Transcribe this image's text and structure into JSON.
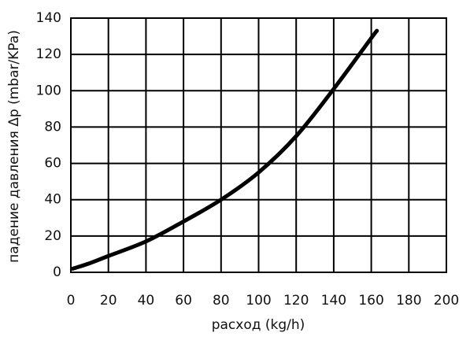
{
  "chart_data": {
    "type": "line",
    "x_label": "расход (kg/h)",
    "y_label": "падение давления Δp (mbar/KPa)",
    "x": [
      1,
      10,
      20,
      40,
      60,
      80,
      100,
      120,
      140,
      160,
      163
    ],
    "values": [
      2,
      5,
      9,
      17,
      28,
      40,
      55,
      75,
      101,
      129,
      133
    ],
    "color": "#000000",
    "xlim": [
      0,
      200
    ],
    "xticks": [
      0,
      20,
      40,
      60,
      80,
      100,
      120,
      140,
      160,
      180,
      200
    ],
    "ylim": [
      0,
      140
    ],
    "yticks": [
      0,
      20,
      40,
      60,
      80,
      100,
      120,
      140
    ],
    "grid": true
  }
}
